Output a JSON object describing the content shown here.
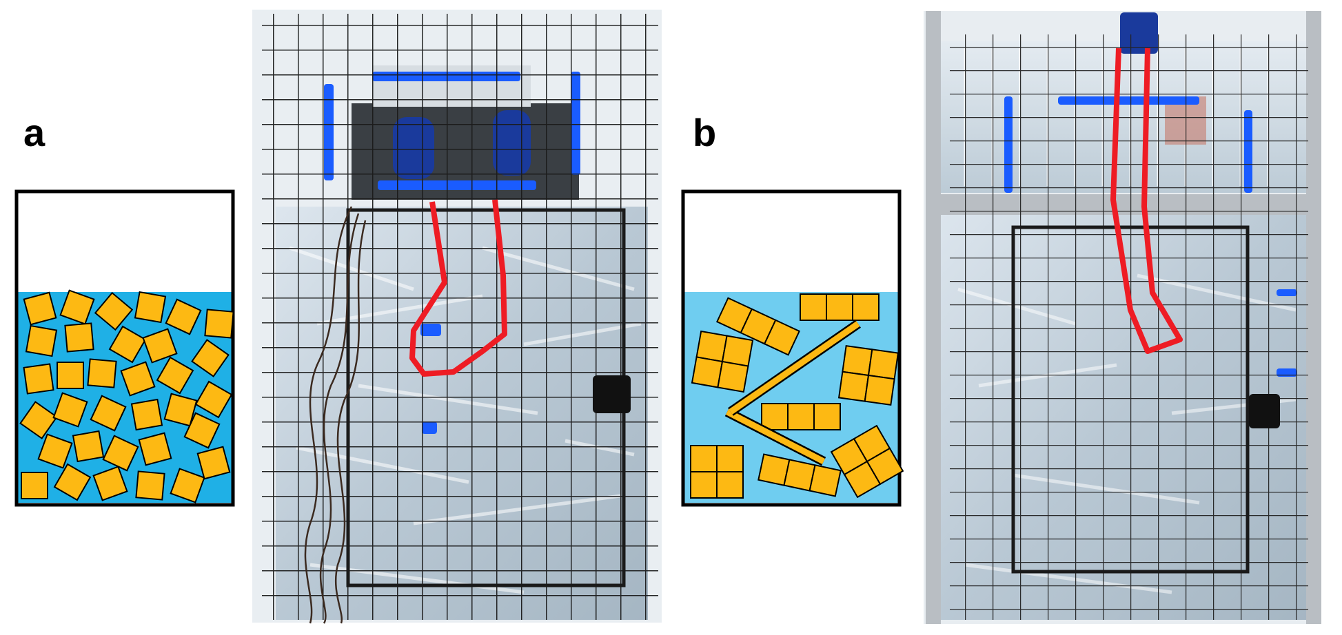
{
  "panels": [
    {
      "letter": "a"
    },
    {
      "letter": "b"
    }
  ],
  "colors": {
    "fluid": "#1fb0e6",
    "fluid_light": "#6fcdf0",
    "particle": "#fdb913",
    "outline": "#000000",
    "probe": "#ee1c24",
    "tape": "#1a5cff",
    "bottles": "#c9d6e0",
    "cage": "#1a1a1a"
  },
  "icons": {
    "container_a": "container-loose-squares-icon",
    "container_b": "container-clustered-particles-icon"
  }
}
